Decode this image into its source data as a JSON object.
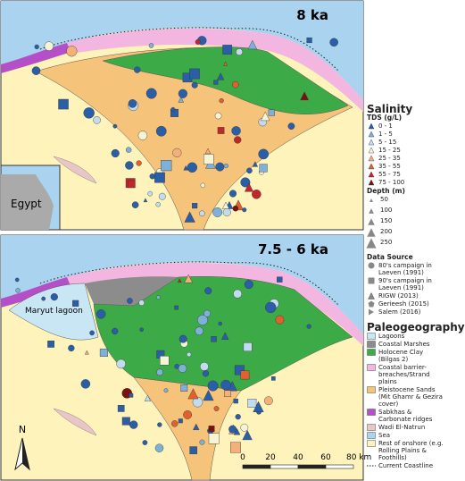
{
  "panels": [
    {
      "label": "8 ka",
      "inset_label": "Egypt"
    },
    {
      "label": "7.5 - 6 ka",
      "place_label": "Maryut lagoon"
    }
  ],
  "legend": {
    "salinity": {
      "title": "Salinity",
      "tds_title": "TDS (g/L)",
      "tds": [
        "0 - 1",
        "1 - 5",
        "5 - 15",
        "15 - 25",
        "25 - 35",
        "35 - 55",
        "55 - 75",
        "75 - 100"
      ],
      "depth_title": "Depth (m)",
      "depth": [
        50,
        100,
        150,
        200,
        250
      ]
    },
    "data_source": {
      "title": "Data Source",
      "items": [
        "80's campaign in Laeven (1991)",
        "90's campaign in Laeven (1991)",
        "RIGW (2013)",
        "Gerieesh (2015)",
        "Salem (2016)"
      ]
    },
    "paleogeography": {
      "title": "Paleogeography",
      "items": [
        "Lagoons",
        "Coastal Marshes",
        "Holocene Clay (Bilgas 2)",
        "Coastal barrier-breaches/Strand plains",
        "Pleistocene Sands (Mit Ghamr & Gezira cover)",
        "Sabkhas & Carbonate ridges",
        "Wadi El-Natrun",
        "Sea",
        "Rest of onshore (e.g. Rolling Plains & Foothills)",
        "Current Coastline"
      ]
    }
  },
  "scale_bar": {
    "labels": [
      "0",
      "20",
      "40",
      "60",
      "80 km"
    ]
  },
  "north": "N"
}
